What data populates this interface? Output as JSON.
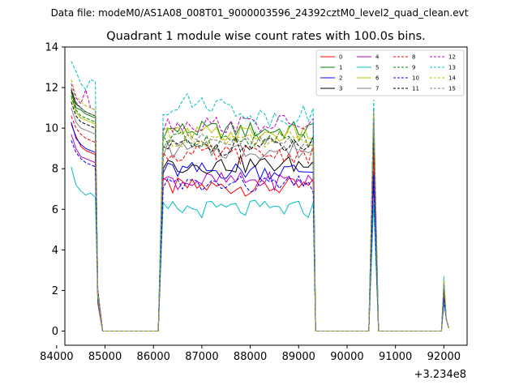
{
  "figure": {
    "suptitle": "Data file: modeM0/AS1A08_008T01_9000003596_24392cztM0_level2_quad_clean.evt",
    "title": "Quadrant 1 module wise count rates with 100.0s bins.",
    "x_offset_label": "+3.234e8"
  },
  "chart_data": {
    "type": "line",
    "title": "Quadrant 1 module wise count rates with 100.0s bins.",
    "xlabel": "",
    "ylabel": "",
    "x_offset": 323400000,
    "xlim": [
      84170,
      92480
    ],
    "ylim": [
      -0.7,
      14
    ],
    "xticks": [
      84000,
      85000,
      86000,
      87000,
      88000,
      89000,
      90000,
      91000,
      92000
    ],
    "xtick_labels": [
      "84000",
      "85000",
      "86000",
      "87000",
      "88000",
      "89000",
      "90000",
      "91000",
      "92000"
    ],
    "yticks": [
      0,
      2,
      4,
      6,
      8,
      10,
      12,
      14
    ],
    "ytick_labels": [
      "0",
      "2",
      "4",
      "6",
      "8",
      "10",
      "12",
      "14"
    ],
    "grid": false,
    "legend": {
      "placement": "top-right",
      "columns": 4
    },
    "segments": [
      {
        "start": 84300,
        "end": 84800,
        "step": 100
      },
      {
        "start": 84850,
        "end": 85050,
        "step": 100
      },
      {
        "start": 86100,
        "end": 89300,
        "step": 100
      },
      {
        "start": 89350,
        "end": 89550,
        "step": 100
      },
      {
        "start": 90450,
        "end": 90650,
        "step": 100
      },
      {
        "start": 90700,
        "end": 90750,
        "step": 50
      },
      {
        "start": 91950,
        "end": 92050,
        "step": 50
      },
      {
        "start": 92100,
        "end": 92100,
        "step": 50
      }
    ],
    "series": [
      {
        "name": "0",
        "color": "#ff0000",
        "dash": "solid",
        "levels": [
          10.2,
          9.6,
          9.1,
          8.9,
          8.8,
          8.7
        ],
        "active_mean": 7.1,
        "peak": 8.9,
        "tail": 1.9
      },
      {
        "name": "1",
        "color": "#008000",
        "dash": "solid",
        "levels": [
          11.8,
          11.0,
          10.9,
          10.7,
          10.6,
          10.5
        ],
        "active_mean": 9.9,
        "peak": 10.7,
        "tail": 2.3
      },
      {
        "name": "2",
        "color": "#0000ff",
        "dash": "solid",
        "levels": [
          10.3,
          9.5,
          9.2,
          9.0,
          8.9,
          8.8
        ],
        "active_mean": 7.9,
        "peak": 7.4,
        "tail": 1.6
      },
      {
        "name": "3",
        "color": "#000000",
        "dash": "solid",
        "levels": [
          11.9,
          11.2,
          11.0,
          10.8,
          10.7,
          10.6
        ],
        "active_mean": 8.2,
        "peak": 10.0,
        "tail": 1.8
      },
      {
        "name": "4",
        "color": "#bf00bf",
        "dash": "solid",
        "levels": [
          9.7,
          9.0,
          8.6,
          8.5,
          8.4,
          8.3
        ],
        "active_mean": 7.4,
        "peak": 7.9,
        "tail": 1.5
      },
      {
        "name": "5",
        "color": "#00bfbf",
        "dash": "solid",
        "levels": [
          8.1,
          7.2,
          6.9,
          6.7,
          6.8,
          6.6
        ],
        "active_mean": 6.0,
        "peak": 6.3,
        "tail": 1.4
      },
      {
        "name": "6",
        "color": "#bfbf00",
        "dash": "solid",
        "levels": [
          11.5,
          10.8,
          10.5,
          10.4,
          10.3,
          10.2
        ],
        "active_mean": 9.7,
        "peak": 10.5,
        "tail": 2.2
      },
      {
        "name": "7",
        "color": "#808080",
        "dash": "solid",
        "levels": [
          11.0,
          10.3,
          10.0,
          9.9,
          9.8,
          9.7
        ],
        "active_mean": 8.9,
        "peak": 9.6,
        "tail": 2.0
      },
      {
        "name": "8",
        "color": "#ff0000",
        "dash": "dashed",
        "levels": [
          10.6,
          10.0,
          9.7,
          9.5,
          9.4,
          9.3
        ],
        "active_mean": 8.7,
        "peak": 9.3,
        "tail": 2.0
      },
      {
        "name": "9",
        "color": "#008000",
        "dash": "dashed",
        "levels": [
          11.6,
          10.9,
          10.6,
          10.5,
          10.4,
          10.3
        ],
        "active_mean": 9.4,
        "peak": 10.2,
        "tail": 2.2
      },
      {
        "name": "10",
        "color": "#0000ff",
        "dash": "dashed",
        "levels": [
          9.4,
          8.8,
          8.5,
          8.3,
          8.2,
          8.1
        ],
        "active_mean": 7.2,
        "peak": 7.7,
        "tail": 1.6
      },
      {
        "name": "11",
        "color": "#000000",
        "dash": "dashed",
        "levels": [
          11.3,
          10.6,
          10.3,
          10.2,
          10.1,
          10.0
        ],
        "active_mean": 9.1,
        "peak": 9.8,
        "tail": 2.1
      },
      {
        "name": "12",
        "color": "#bf00bf",
        "dash": "dashed",
        "levels": [
          12.2,
          11.5,
          11.2,
          11.9,
          11.0,
          10.9
        ],
        "active_mean": 10.2,
        "peak": 10.9,
        "tail": 2.4
      },
      {
        "name": "13",
        "color": "#00bfbf",
        "dash": "dashed",
        "levels": [
          13.3,
          12.8,
          12.2,
          11.9,
          12.4,
          12.3
        ],
        "active_mean": 10.9,
        "peak": 11.4,
        "tail": 2.7
      },
      {
        "name": "14",
        "color": "#bfbf00",
        "dash": "dashed",
        "levels": [
          12.4,
          11.6,
          11.3,
          11.1,
          11.0,
          10.9
        ],
        "active_mean": 9.5,
        "peak": 10.8,
        "tail": 2.5
      },
      {
        "name": "15",
        "color": "#808080",
        "dash": "dashed",
        "levels": [
          12.0,
          11.3,
          11.0,
          10.8,
          10.7,
          10.6
        ],
        "active_mean": 9.3,
        "peak": 10.4,
        "tail": 2.3
      }
    ]
  }
}
